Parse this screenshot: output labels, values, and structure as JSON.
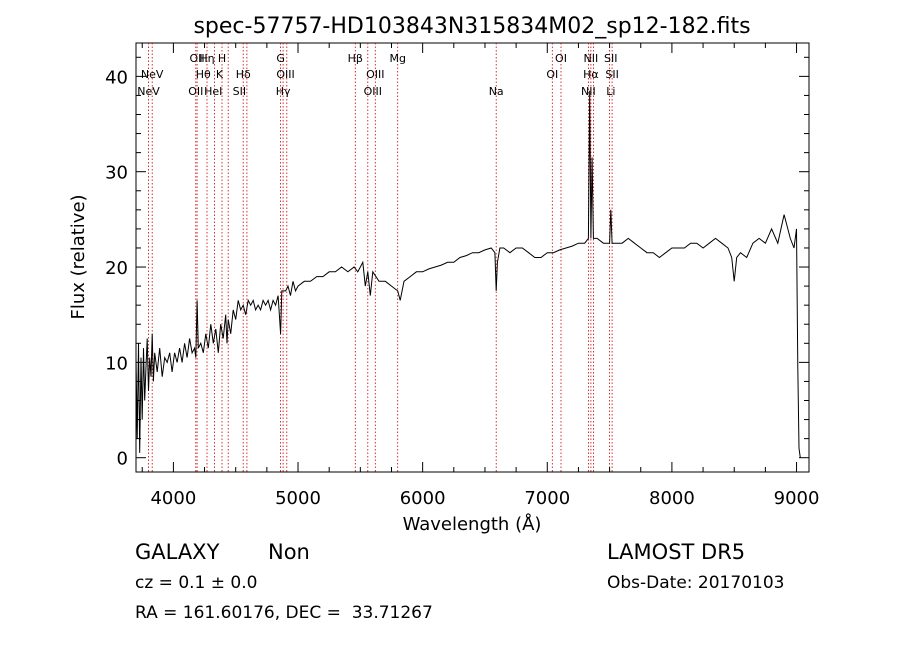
{
  "chart_data": {
    "type": "line",
    "title": "spec-57757-HD103843N315834M02_sp12-182.fits",
    "xlabel": "Wavelength (Å)",
    "ylabel": "Flux (relative)",
    "xlim": [
      3700,
      9100
    ],
    "ylim": [
      -1.5,
      43.5
    ],
    "xticks": [
      4000,
      5000,
      6000,
      7000,
      8000,
      9000
    ],
    "yticks": [
      0,
      10,
      20,
      30,
      40
    ],
    "grid": false,
    "line_color": "#000000",
    "marker_color": "#cc0000",
    "series": [
      {
        "points": [
          [
            3700,
            10.5
          ],
          [
            3710,
            2.0
          ],
          [
            3720,
            12.0
          ],
          [
            3730,
            0.5
          ],
          [
            3740,
            10.5
          ],
          [
            3750,
            4.0
          ],
          [
            3760,
            11.5
          ],
          [
            3770,
            6.0
          ],
          [
            3780,
            9.5
          ],
          [
            3790,
            12.5
          ],
          [
            3800,
            7.0
          ],
          [
            3810,
            10.5
          ],
          [
            3820,
            8.5
          ],
          [
            3830,
            13.0
          ],
          [
            3840,
            8.0
          ],
          [
            3850,
            11.0
          ],
          [
            3870,
            9.0
          ],
          [
            3890,
            11.5
          ],
          [
            3910,
            8.5
          ],
          [
            3930,
            10.5
          ],
          [
            3950,
            10.0
          ],
          [
            3970,
            11.0
          ],
          [
            3990,
            9.0
          ],
          [
            4010,
            11.0
          ],
          [
            4030,
            10.0
          ],
          [
            4050,
            11.5
          ],
          [
            4070,
            10.0
          ],
          [
            4090,
            12.0
          ],
          [
            4110,
            10.5
          ],
          [
            4130,
            12.5
          ],
          [
            4150,
            11.0
          ],
          [
            4170,
            11.5
          ],
          [
            4180,
            10.5
          ],
          [
            4190,
            16.5
          ],
          [
            4200,
            11.5
          ],
          [
            4220,
            12.0
          ],
          [
            4240,
            11.0
          ],
          [
            4260,
            13.0
          ],
          [
            4280,
            11.5
          ],
          [
            4300,
            14.0
          ],
          [
            4320,
            12.0
          ],
          [
            4340,
            13.5
          ],
          [
            4360,
            11.0
          ],
          [
            4380,
            14.0
          ],
          [
            4400,
            12.5
          ],
          [
            4420,
            15.0
          ],
          [
            4430,
            12.0
          ],
          [
            4440,
            14.5
          ],
          [
            4460,
            13.0
          ],
          [
            4480,
            15.5
          ],
          [
            4500,
            14.5
          ],
          [
            4520,
            16.5
          ],
          [
            4540,
            15.5
          ],
          [
            4560,
            16.0
          ],
          [
            4580,
            15.0
          ],
          [
            4600,
            16.5
          ],
          [
            4620,
            16.0
          ],
          [
            4640,
            16.5
          ],
          [
            4660,
            15.5
          ],
          [
            4680,
            16.0
          ],
          [
            4700,
            15.5
          ],
          [
            4720,
            16.5
          ],
          [
            4740,
            16.0
          ],
          [
            4760,
            16.5
          ],
          [
            4780,
            15.5
          ],
          [
            4800,
            16.5
          ],
          [
            4820,
            16.0
          ],
          [
            4840,
            17.0
          ],
          [
            4860,
            13.0
          ],
          [
            4870,
            17.5
          ],
          [
            4900,
            17.5
          ],
          [
            4920,
            18.0
          ],
          [
            4940,
            17.0
          ],
          [
            4960,
            18.5
          ],
          [
            4980,
            17.5
          ],
          [
            5000,
            18.0
          ],
          [
            5050,
            18.5
          ],
          [
            5100,
            18.5
          ],
          [
            5150,
            19.0
          ],
          [
            5200,
            19.0
          ],
          [
            5250,
            19.5
          ],
          [
            5300,
            19.5
          ],
          [
            5350,
            20.0
          ],
          [
            5400,
            19.5
          ],
          [
            5450,
            20.0
          ],
          [
            5480,
            19.5
          ],
          [
            5520,
            20.5
          ],
          [
            5540,
            18.0
          ],
          [
            5560,
            19.5
          ],
          [
            5580,
            17.0
          ],
          [
            5600,
            19.5
          ],
          [
            5650,
            18.5
          ],
          [
            5700,
            18.5
          ],
          [
            5750,
            18.0
          ],
          [
            5800,
            17.5
          ],
          [
            5820,
            16.5
          ],
          [
            5850,
            18.5
          ],
          [
            5900,
            19.0
          ],
          [
            5950,
            19.5
          ],
          [
            6000,
            19.5
          ],
          [
            6050,
            19.8
          ],
          [
            6100,
            20.0
          ],
          [
            6150,
            20.2
          ],
          [
            6200,
            20.5
          ],
          [
            6250,
            20.5
          ],
          [
            6300,
            21.0
          ],
          [
            6350,
            21.2
          ],
          [
            6400,
            21.5
          ],
          [
            6450,
            21.5
          ],
          [
            6500,
            21.8
          ],
          [
            6550,
            22.0
          ],
          [
            6580,
            21.5
          ],
          [
            6590,
            17.5
          ],
          [
            6600,
            20.5
          ],
          [
            6620,
            22.0
          ],
          [
            6650,
            22.0
          ],
          [
            6700,
            21.5
          ],
          [
            6750,
            22.0
          ],
          [
            6800,
            22.0
          ],
          [
            6850,
            21.5
          ],
          [
            6900,
            21.0
          ],
          [
            6950,
            21.0
          ],
          [
            7000,
            21.5
          ],
          [
            7050,
            21.5
          ],
          [
            7100,
            21.8
          ],
          [
            7150,
            22.0
          ],
          [
            7200,
            22.2
          ],
          [
            7250,
            22.5
          ],
          [
            7300,
            22.5
          ],
          [
            7330,
            23.0
          ],
          [
            7340,
            38.5
          ],
          [
            7350,
            23.0
          ],
          [
            7360,
            31.5
          ],
          [
            7370,
            23.0
          ],
          [
            7400,
            23.0
          ],
          [
            7450,
            22.5
          ],
          [
            7500,
            22.5
          ],
          [
            7510,
            26.0
          ],
          [
            7520,
            22.5
          ],
          [
            7550,
            22.5
          ],
          [
            7600,
            22.5
          ],
          [
            7650,
            23.0
          ],
          [
            7700,
            22.5
          ],
          [
            7750,
            22.0
          ],
          [
            7800,
            21.5
          ],
          [
            7850,
            21.5
          ],
          [
            7900,
            21.0
          ],
          [
            7950,
            21.5
          ],
          [
            8000,
            22.0
          ],
          [
            8050,
            22.0
          ],
          [
            8100,
            22.0
          ],
          [
            8150,
            22.5
          ],
          [
            8200,
            22.5
          ],
          [
            8250,
            22.0
          ],
          [
            8300,
            22.5
          ],
          [
            8350,
            23.0
          ],
          [
            8400,
            22.5
          ],
          [
            8450,
            22.0
          ],
          [
            8480,
            21.0
          ],
          [
            8500,
            18.5
          ],
          [
            8520,
            21.0
          ],
          [
            8550,
            21.5
          ],
          [
            8600,
            21.0
          ],
          [
            8650,
            22.5
          ],
          [
            8700,
            23.0
          ],
          [
            8750,
            22.5
          ],
          [
            8800,
            24.0
          ],
          [
            8850,
            22.5
          ],
          [
            8900,
            25.5
          ],
          [
            8950,
            23.0
          ],
          [
            8980,
            22.0
          ],
          [
            9000,
            24.0
          ],
          [
            9010,
            9.5
          ],
          [
            9020,
            1.0
          ],
          [
            9030,
            0.0
          ]
        ]
      }
    ],
    "lines": [
      {
        "wavelength": 3800
      },
      {
        "wavelength": 3830
      },
      {
        "wavelength": 4180
      },
      {
        "wavelength": 4190
      },
      {
        "wavelength": 4270
      },
      {
        "wavelength": 4330
      },
      {
        "wavelength": 4390
      },
      {
        "wavelength": 4440
      },
      {
        "wavelength": 4560
      },
      {
        "wavelength": 4590
      },
      {
        "wavelength": 4860
      },
      {
        "wavelength": 4880
      },
      {
        "wavelength": 4910
      },
      {
        "wavelength": 5460
      },
      {
        "wavelength": 5560
      },
      {
        "wavelength": 5620
      },
      {
        "wavelength": 5800
      },
      {
        "wavelength": 6590
      },
      {
        "wavelength": 7040
      },
      {
        "wavelength": 7110
      },
      {
        "wavelength": 7330
      },
      {
        "wavelength": 7350
      },
      {
        "wavelength": 7370
      },
      {
        "wavelength": 7500
      },
      {
        "wavelength": 7520
      }
    ],
    "line_labels": [
      {
        "text": "NeV",
        "wavelength": 3830,
        "row": 1
      },
      {
        "text": "NeV",
        "wavelength": 3800,
        "row": 2
      },
      {
        "text": "OII",
        "wavelength": 4190,
        "row": 0
      },
      {
        "text": "Hη",
        "wavelength": 4270,
        "row": 0
      },
      {
        "text": "H",
        "wavelength": 4390,
        "row": 0
      },
      {
        "text": "Hθ",
        "wavelength": 4240,
        "row": 1
      },
      {
        "text": "K",
        "wavelength": 4370,
        "row": 1
      },
      {
        "text": "Hδ",
        "wavelength": 4560,
        "row": 1
      },
      {
        "text": "OII",
        "wavelength": 4180,
        "row": 2
      },
      {
        "text": "HeI",
        "wavelength": 4320,
        "row": 2
      },
      {
        "text": "SII",
        "wavelength": 4530,
        "row": 2
      },
      {
        "text": "G",
        "wavelength": 4860,
        "row": 0
      },
      {
        "text": "OIII",
        "wavelength": 4900,
        "row": 1
      },
      {
        "text": "Hγ",
        "wavelength": 4880,
        "row": 2
      },
      {
        "text": "Hβ",
        "wavelength": 5460,
        "row": 0
      },
      {
        "text": "Mg",
        "wavelength": 5800,
        "row": 0
      },
      {
        "text": "OIII",
        "wavelength": 5620,
        "row": 1
      },
      {
        "text": "OIII",
        "wavelength": 5600,
        "row": 2
      },
      {
        "text": "Na",
        "wavelength": 6590,
        "row": 2
      },
      {
        "text": "OI",
        "wavelength": 7110,
        "row": 0
      },
      {
        "text": "NII",
        "wavelength": 7350,
        "row": 0
      },
      {
        "text": "SII",
        "wavelength": 7510,
        "row": 0
      },
      {
        "text": "OI",
        "wavelength": 7040,
        "row": 1
      },
      {
        "text": "Hα",
        "wavelength": 7350,
        "row": 1
      },
      {
        "text": "SII",
        "wavelength": 7520,
        "row": 1
      },
      {
        "text": "NII",
        "wavelength": 7330,
        "row": 2
      },
      {
        "text": "Li",
        "wavelength": 7510,
        "row": 2
      }
    ]
  },
  "info": {
    "object_class": "GALAXY",
    "subclass": "Non",
    "survey": "LAMOST DR5",
    "redshift": "cz = 0.1 ± 0.0",
    "obs_date": "Obs-Date: 20170103",
    "coords": "RA = 161.60176, DEC =  33.71267"
  }
}
